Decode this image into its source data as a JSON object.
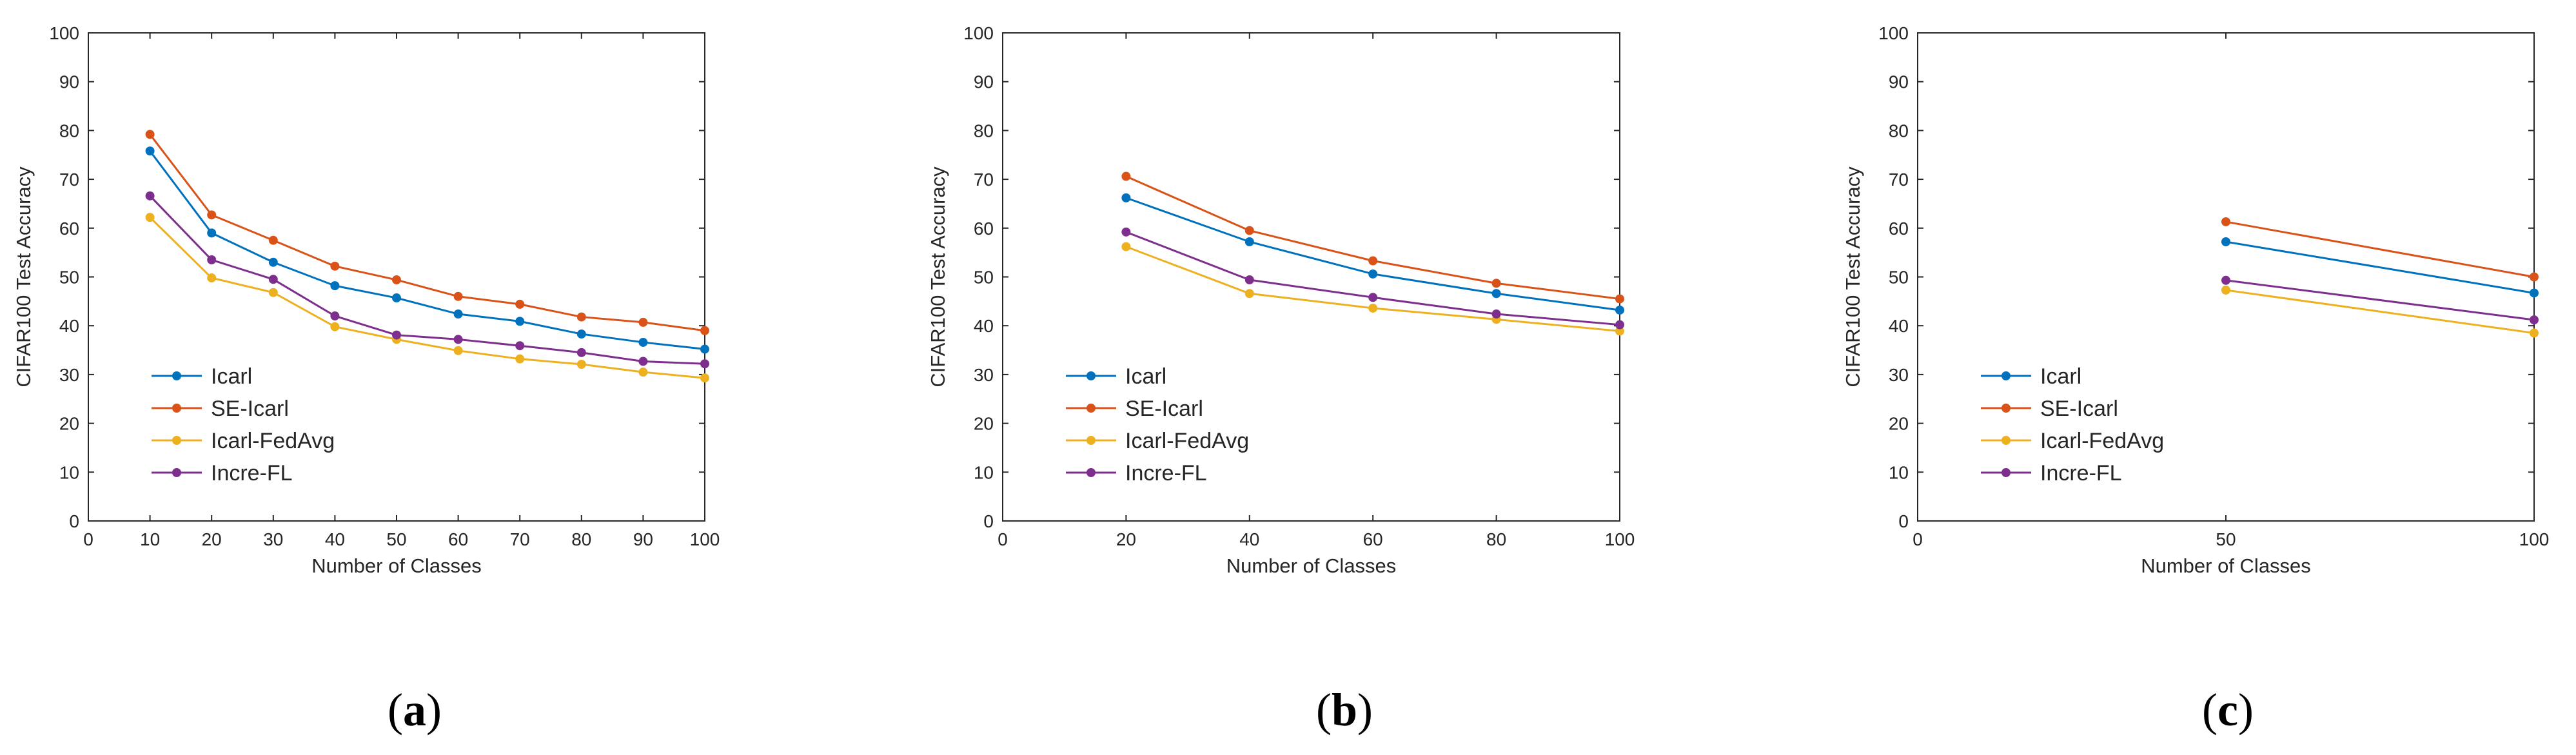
{
  "series_styles": [
    {
      "name": "Icarl",
      "color": "#0072BD"
    },
    {
      "name": "SE-Icarl",
      "color": "#D95319"
    },
    {
      "name": "Icarl-FedAvg",
      "color": "#EDB120"
    },
    {
      "name": "Incre-FL",
      "color": "#7E2F8E"
    }
  ],
  "chart_data": [
    {
      "type": "line",
      "panel_label": "a",
      "xlabel": "Number of Classes",
      "ylabel": "CIFAR100 Test Accuracy",
      "xlim": [
        0,
        100
      ],
      "ylim": [
        0,
        100
      ],
      "xticks": [
        0,
        10,
        20,
        30,
        40,
        50,
        60,
        70,
        80,
        90,
        100
      ],
      "yticks": [
        0,
        10,
        20,
        30,
        40,
        50,
        60,
        70,
        80,
        90,
        100
      ],
      "legend_position": "lower-left",
      "x": [
        10,
        20,
        30,
        40,
        50,
        60,
        70,
        80,
        90,
        100
      ],
      "series": [
        {
          "name": "Icarl",
          "values": [
            75.8,
            59.0,
            53.0,
            48.2,
            45.7,
            42.4,
            40.9,
            38.3,
            36.6,
            35.2
          ]
        },
        {
          "name": "SE-Icarl",
          "values": [
            79.2,
            62.7,
            57.5,
            52.2,
            49.4,
            46.0,
            44.4,
            41.8,
            40.7,
            39.0
          ]
        },
        {
          "name": "Icarl-FedAvg",
          "values": [
            62.2,
            49.8,
            46.8,
            39.8,
            37.2,
            34.9,
            33.2,
            32.1,
            30.5,
            29.3
          ]
        },
        {
          "name": "Incre-FL",
          "values": [
            66.6,
            53.5,
            49.5,
            42.0,
            38.1,
            37.2,
            35.9,
            34.5,
            32.7,
            32.2
          ]
        }
      ]
    },
    {
      "type": "line",
      "panel_label": "b",
      "xlabel": "Number of Classes",
      "ylabel": "CIFAR100 Test Accuracy",
      "xlim": [
        0,
        100
      ],
      "ylim": [
        0,
        100
      ],
      "xticks": [
        0,
        20,
        40,
        60,
        80,
        100
      ],
      "yticks": [
        0,
        10,
        20,
        30,
        40,
        50,
        60,
        70,
        80,
        90,
        100
      ],
      "legend_position": "lower-left",
      "x": [
        20,
        40,
        60,
        80,
        100
      ],
      "series": [
        {
          "name": "Icarl",
          "values": [
            66.2,
            57.2,
            50.6,
            46.6,
            43.2
          ]
        },
        {
          "name": "SE-Icarl",
          "values": [
            70.6,
            59.5,
            53.3,
            48.7,
            45.5
          ]
        },
        {
          "name": "Icarl-FedAvg",
          "values": [
            56.2,
            46.6,
            43.6,
            41.3,
            38.9
          ]
        },
        {
          "name": "Incre-FL",
          "values": [
            59.2,
            49.4,
            45.8,
            42.4,
            40.2
          ]
        }
      ]
    },
    {
      "type": "line",
      "panel_label": "c",
      "xlabel": "Number of Classes",
      "ylabel": "CIFAR100 Test Accuracy",
      "xlim": [
        0,
        100
      ],
      "ylim": [
        0,
        100
      ],
      "xticks": [
        0,
        50,
        100
      ],
      "yticks": [
        0,
        10,
        20,
        30,
        40,
        50,
        60,
        70,
        80,
        90,
        100
      ],
      "legend_position": "lower-left",
      "x": [
        50,
        100
      ],
      "series": [
        {
          "name": "Icarl",
          "values": [
            57.2,
            46.7
          ]
        },
        {
          "name": "SE-Icarl",
          "values": [
            61.3,
            50.0
          ]
        },
        {
          "name": "Icarl-FedAvg",
          "values": [
            47.3,
            38.5
          ]
        },
        {
          "name": "Incre-FL",
          "values": [
            49.3,
            41.2
          ]
        }
      ]
    }
  ]
}
